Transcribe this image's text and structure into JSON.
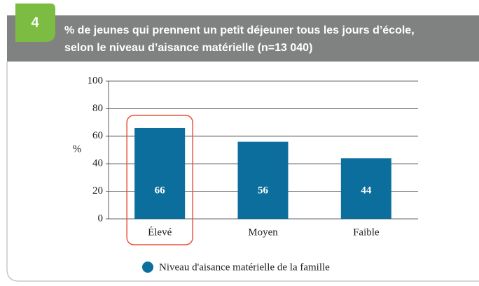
{
  "chart_data": {
    "type": "bar",
    "figure_number": "4",
    "title_lines": [
      "% de jeunes qui prennent un petit déjeuner tous les jours d’école,",
      "selon le niveau d’aisance matérielle (n=13 040)"
    ],
    "ylabel": "%",
    "categories": [
      "Élevé",
      "Moyen",
      "Faible"
    ],
    "series": [
      {
        "name": "Niveau d'aisance matérielle de la famille",
        "color": "#0b6e9c",
        "values": [
          66,
          56,
          44
        ]
      }
    ],
    "ylim": [
      0,
      100
    ],
    "yticks": [
      0,
      20,
      40,
      60,
      80,
      100
    ],
    "grid": true,
    "highlight_index": 0,
    "highlight_color": "#e8553a"
  }
}
